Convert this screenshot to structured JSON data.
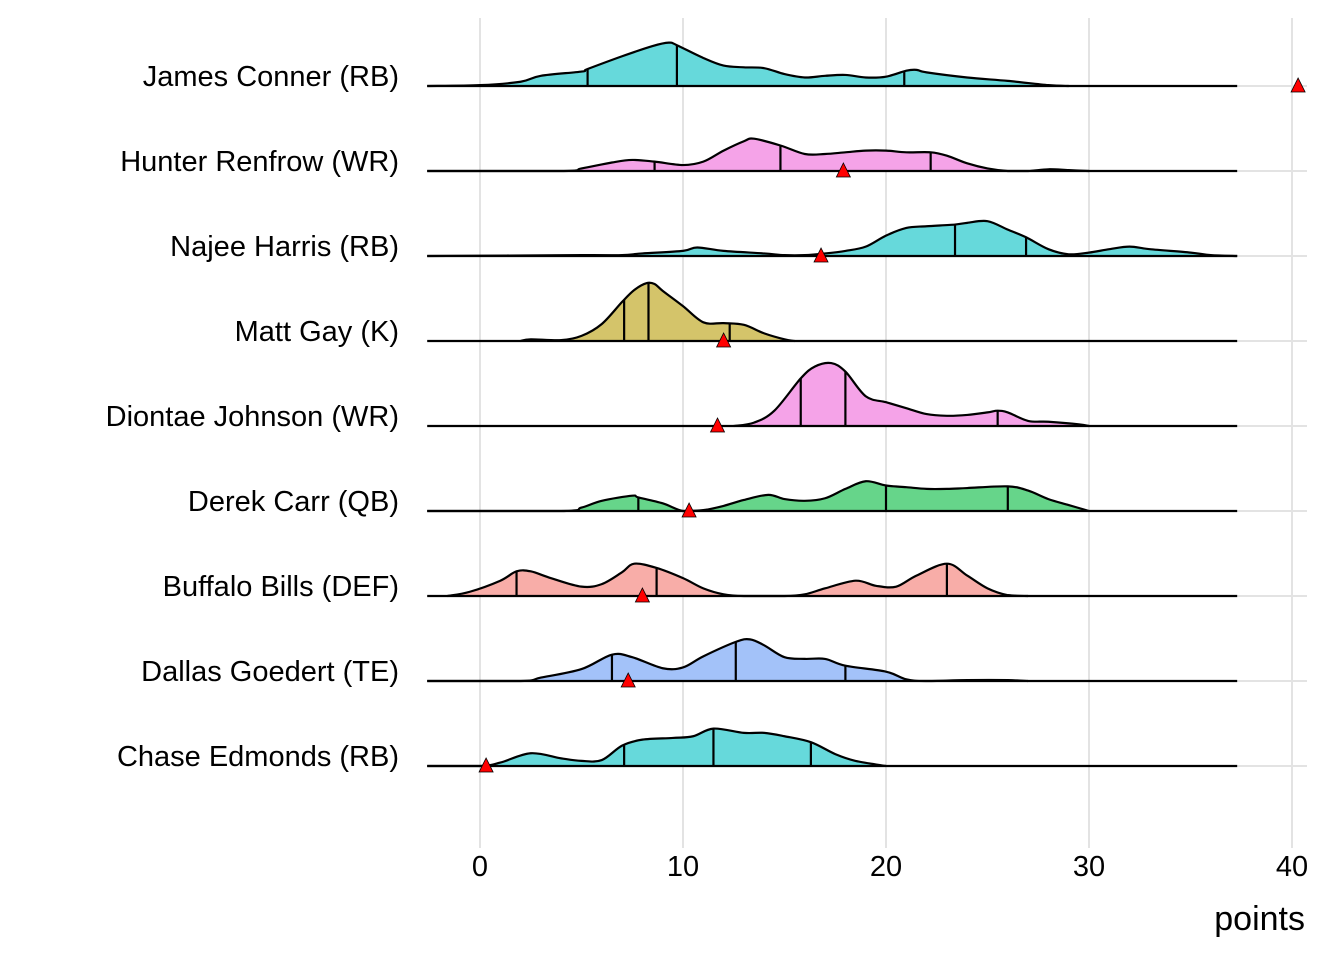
{
  "chart_data": {
    "type": "ridgeline",
    "title": "",
    "xlabel": "points",
    "ylabel": "",
    "xlim": [
      -2.6,
      41
    ],
    "x_ticks": [
      0,
      10,
      20,
      30,
      40
    ],
    "x_tick_labels": [
      "0",
      "10",
      "20",
      "30",
      "40"
    ],
    "grid": true,
    "legend": "none",
    "density_range": [
      -2.6,
      37.3
    ],
    "series": [
      {
        "name": "James Conner (RB)",
        "color": "#66D9DB",
        "quantiles": [
          5.3,
          9.7,
          20.9
        ],
        "marker": 40.3,
        "density": [
          [
            -2.6,
            0
          ],
          [
            0,
            0.01
          ],
          [
            2,
            0.05
          ],
          [
            3,
            0.12
          ],
          [
            5,
            0.17
          ],
          [
            5.3,
            0.2
          ],
          [
            7,
            0.35
          ],
          [
            8.5,
            0.47
          ],
          [
            9.3,
            0.51
          ],
          [
            9.7,
            0.48
          ],
          [
            11,
            0.33
          ],
          [
            12,
            0.24
          ],
          [
            13,
            0.22
          ],
          [
            14,
            0.21
          ],
          [
            15,
            0.14
          ],
          [
            16,
            0.1
          ],
          [
            17,
            0.12
          ],
          [
            18,
            0.13
          ],
          [
            19,
            0.1
          ],
          [
            20,
            0.11
          ],
          [
            21,
            0.18
          ],
          [
            21.5,
            0.19
          ],
          [
            22,
            0.16
          ],
          [
            24,
            0.1
          ],
          [
            26,
            0.06
          ],
          [
            28,
            0.01
          ],
          [
            29,
            0
          ]
        ]
      },
      {
        "name": "Hunter Renfrow (WR)",
        "color": "#F5A3E8",
        "quantiles": [
          8.6,
          14.8,
          22.2
        ],
        "marker": 17.9,
        "density": [
          [
            -2.6,
            0
          ],
          [
            4,
            0
          ],
          [
            5,
            0.03
          ],
          [
            6.5,
            0.1
          ],
          [
            7.5,
            0.13
          ],
          [
            8.6,
            0.11
          ],
          [
            10,
            0.07
          ],
          [
            11,
            0.11
          ],
          [
            12,
            0.24
          ],
          [
            13,
            0.35
          ],
          [
            13.5,
            0.38
          ],
          [
            14.8,
            0.3
          ],
          [
            16,
            0.2
          ],
          [
            17,
            0.2
          ],
          [
            18,
            0.22
          ],
          [
            19,
            0.24
          ],
          [
            20,
            0.24
          ],
          [
            21,
            0.22
          ],
          [
            22.2,
            0.22
          ],
          [
            23,
            0.18
          ],
          [
            24,
            0.09
          ],
          [
            25,
            0.03
          ],
          [
            26,
            0
          ],
          [
            27,
            0
          ],
          [
            28,
            0.02
          ],
          [
            29,
            0.01
          ],
          [
            30,
            0
          ]
        ]
      },
      {
        "name": "Najee Harris (RB)",
        "color": "#66D9DB",
        "quantiles": [
          23.4,
          26.9
        ],
        "marker": 16.8,
        "density": [
          [
            -2.6,
            0
          ],
          [
            5,
            0.01
          ],
          [
            7,
            0.01
          ],
          [
            8,
            0.03
          ],
          [
            10,
            0.06
          ],
          [
            10.7,
            0.1
          ],
          [
            12,
            0.06
          ],
          [
            14,
            0.03
          ],
          [
            15,
            0.01
          ],
          [
            16,
            0.01
          ],
          [
            17,
            0.03
          ],
          [
            18,
            0.06
          ],
          [
            19,
            0.11
          ],
          [
            20,
            0.24
          ],
          [
            21,
            0.33
          ],
          [
            22,
            0.35
          ],
          [
            23.4,
            0.37
          ],
          [
            24,
            0.39
          ],
          [
            25,
            0.41
          ],
          [
            26,
            0.31
          ],
          [
            26.9,
            0.22
          ],
          [
            28,
            0.08
          ],
          [
            29,
            0.02
          ],
          [
            30,
            0.04
          ],
          [
            31,
            0.08
          ],
          [
            32,
            0.11
          ],
          [
            33,
            0.08
          ],
          [
            35,
            0.04
          ],
          [
            36,
            0.01
          ],
          [
            37.3,
            0
          ]
        ]
      },
      {
        "name": "Matt Gay (K)",
        "color": "#D4C46A",
        "quantiles": [
          7.1,
          8.3,
          12.3
        ],
        "marker": 12.0,
        "density": [
          [
            2,
            0
          ],
          [
            2.5,
            0.02
          ],
          [
            4,
            0.01
          ],
          [
            5,
            0.06
          ],
          [
            6,
            0.2
          ],
          [
            7,
            0.46
          ],
          [
            7.6,
            0.6
          ],
          [
            8.2,
            0.68
          ],
          [
            8.6,
            0.67
          ],
          [
            9,
            0.59
          ],
          [
            10,
            0.41
          ],
          [
            11,
            0.22
          ],
          [
            12,
            0.21
          ],
          [
            13,
            0.19
          ],
          [
            14,
            0.09
          ],
          [
            15,
            0.02
          ],
          [
            15.5,
            0
          ]
        ]
      },
      {
        "name": "Diontae Johnson (WR)",
        "color": "#F5A3E8",
        "quantiles": [
          15.8,
          18.0,
          25.5
        ],
        "marker": 11.7,
        "density": [
          [
            12.5,
            0
          ],
          [
            13.5,
            0.04
          ],
          [
            14.5,
            0.18
          ],
          [
            15.8,
            0.56
          ],
          [
            16.5,
            0.7
          ],
          [
            17.3,
            0.74
          ],
          [
            18,
            0.64
          ],
          [
            19,
            0.35
          ],
          [
            20,
            0.28
          ],
          [
            21,
            0.21
          ],
          [
            22,
            0.14
          ],
          [
            23,
            0.12
          ],
          [
            24,
            0.13
          ],
          [
            25,
            0.16
          ],
          [
            25.5,
            0.18
          ],
          [
            26,
            0.16
          ],
          [
            27,
            0.06
          ],
          [
            28,
            0.05
          ],
          [
            29.5,
            0.02
          ],
          [
            30,
            0
          ]
        ]
      },
      {
        "name": "Derek Carr (QB)",
        "color": "#66D58A",
        "quantiles": [
          7.8,
          20.0,
          26.0
        ],
        "marker": 10.3,
        "density": [
          [
            -2.6,
            0
          ],
          [
            4,
            0
          ],
          [
            5,
            0.04
          ],
          [
            6,
            0.12
          ],
          [
            7.5,
            0.18
          ],
          [
            7.8,
            0.16
          ],
          [
            9,
            0.09
          ],
          [
            10,
            0
          ],
          [
            11,
            0.01
          ],
          [
            12,
            0.06
          ],
          [
            13,
            0.13
          ],
          [
            14.2,
            0.19
          ],
          [
            15,
            0.14
          ],
          [
            16,
            0.12
          ],
          [
            17,
            0.15
          ],
          [
            18,
            0.26
          ],
          [
            19,
            0.35
          ],
          [
            20,
            0.3
          ],
          [
            21,
            0.28
          ],
          [
            22,
            0.26
          ],
          [
            23,
            0.26
          ],
          [
            24,
            0.27
          ],
          [
            26,
            0.29
          ],
          [
            27,
            0.24
          ],
          [
            28,
            0.14
          ],
          [
            29,
            0.07
          ],
          [
            30,
            0
          ]
        ]
      },
      {
        "name": "Buffalo Bills (DEF)",
        "color": "#F8ADA8",
        "quantiles": [
          1.8,
          8.7,
          23.0
        ],
        "marker": 8.0,
        "density": [
          [
            -1.6,
            0
          ],
          [
            -0.5,
            0.05
          ],
          [
            1,
            0.18
          ],
          [
            1.8,
            0.29
          ],
          [
            2.5,
            0.29
          ],
          [
            3.5,
            0.21
          ],
          [
            5,
            0.11
          ],
          [
            6,
            0.14
          ],
          [
            7,
            0.28
          ],
          [
            7.6,
            0.38
          ],
          [
            8.7,
            0.33
          ],
          [
            10,
            0.21
          ],
          [
            11,
            0.09
          ],
          [
            12,
            0.02
          ],
          [
            13,
            0
          ],
          [
            15,
            0
          ],
          [
            16,
            0.02
          ],
          [
            17,
            0.09
          ],
          [
            18.5,
            0.18
          ],
          [
            19.5,
            0.12
          ],
          [
            20.5,
            0.11
          ],
          [
            21.5,
            0.24
          ],
          [
            23,
            0.38
          ],
          [
            24,
            0.24
          ],
          [
            25,
            0.09
          ],
          [
            26,
            0.01
          ],
          [
            27,
            0
          ]
        ]
      },
      {
        "name": "Dallas Goedert (TE)",
        "color": "#A3C2F9",
        "quantiles": [
          6.5,
          12.6,
          18.0
        ],
        "marker": 7.3,
        "density": [
          [
            -2.6,
            0
          ],
          [
            2,
            0
          ],
          [
            3,
            0.04
          ],
          [
            5,
            0.14
          ],
          [
            6.5,
            0.31
          ],
          [
            7.5,
            0.28
          ],
          [
            9,
            0.15
          ],
          [
            10,
            0.16
          ],
          [
            11,
            0.29
          ],
          [
            12.6,
            0.46
          ],
          [
            13.3,
            0.49
          ],
          [
            14,
            0.42
          ],
          [
            15,
            0.28
          ],
          [
            16,
            0.26
          ],
          [
            17,
            0.26
          ],
          [
            18,
            0.18
          ],
          [
            20,
            0.11
          ],
          [
            21,
            0.02
          ],
          [
            22,
            0
          ],
          [
            24,
            0.01
          ],
          [
            26,
            0.01
          ],
          [
            27,
            0
          ]
        ]
      },
      {
        "name": "Chase Edmonds (RB)",
        "color": "#66D9DB",
        "quantiles": [
          7.1,
          11.5,
          16.3
        ],
        "marker": 0.3,
        "density": [
          [
            -2.6,
            0
          ],
          [
            0,
            0
          ],
          [
            1,
            0.04
          ],
          [
            2.5,
            0.15
          ],
          [
            4,
            0.09
          ],
          [
            5,
            0.06
          ],
          [
            6,
            0.07
          ],
          [
            7,
            0.24
          ],
          [
            8,
            0.31
          ],
          [
            9.5,
            0.33
          ],
          [
            10.5,
            0.35
          ],
          [
            11.5,
            0.44
          ],
          [
            13,
            0.39
          ],
          [
            14,
            0.39
          ],
          [
            15,
            0.35
          ],
          [
            16.3,
            0.28
          ],
          [
            17.5,
            0.14
          ],
          [
            18.5,
            0.06
          ],
          [
            20,
            0
          ]
        ]
      }
    ]
  }
}
